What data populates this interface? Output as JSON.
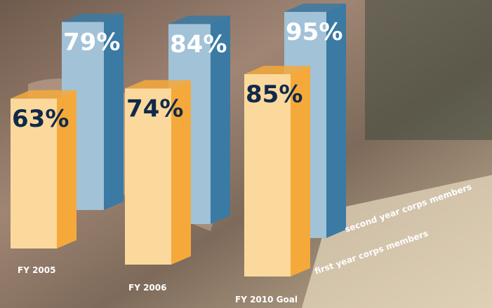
{
  "chart_data": {
    "type": "bar",
    "categories": [
      "FY 2005",
      "FY 2006",
      "FY 2010 Goal"
    ],
    "series": [
      {
        "name": "first year corps members",
        "color": "#fbd99c",
        "side_color": "#f5a93b",
        "label_color": "#10294a",
        "values": [
          63,
          74,
          85
        ],
        "value_labels": [
          "63%",
          "74%",
          "85%"
        ]
      },
      {
        "name": "second year corps members",
        "color": "#a2c2d8",
        "side_color": "#3a7aa3",
        "label_color": "#ffffff",
        "values": [
          79,
          84,
          95
        ],
        "value_labels": [
          "79%",
          "84%",
          "95%"
        ]
      }
    ]
  }
}
